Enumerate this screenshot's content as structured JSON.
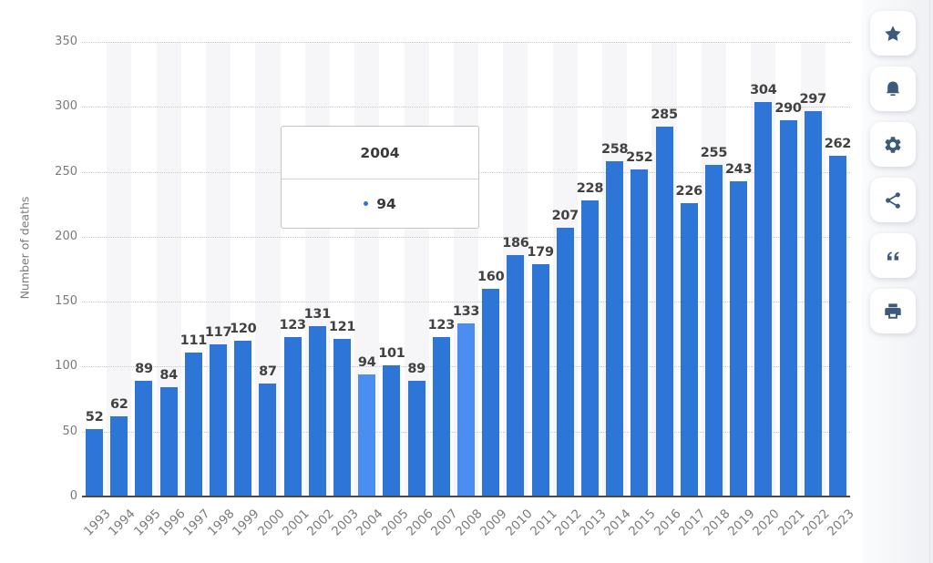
{
  "chart_data": {
    "type": "bar",
    "ylabel": "Number of deaths",
    "ylim": [
      0,
      350
    ],
    "yticks": [
      0,
      50,
      100,
      150,
      200,
      250,
      300,
      350
    ],
    "grid": "horizontal-dotted",
    "legend": "none",
    "categories": [
      "1993",
      "1994",
      "1995",
      "1996",
      "1997",
      "1998",
      "1999",
      "2000",
      "2001",
      "2002",
      "2003",
      "2004",
      "2005",
      "2006",
      "2007",
      "2008",
      "2009",
      "2010",
      "2011",
      "2012",
      "2013",
      "2014",
      "2015",
      "2016",
      "2017",
      "2018",
      "2019",
      "2020",
      "2021",
      "2022",
      "2023"
    ],
    "values": [
      52,
      62,
      89,
      84,
      111,
      117,
      120,
      87,
      123,
      131,
      121,
      94,
      101,
      89,
      123,
      133,
      160,
      186,
      179,
      207,
      228,
      258,
      252,
      285,
      226,
      255,
      243,
      304,
      290,
      297,
      262
    ],
    "highlighted_categories": [
      "2004",
      "2008"
    ],
    "colors": {
      "bar": "#2e75d8",
      "bar_highlight": "#4b8df0",
      "value_label": "#414141",
      "axis_label": "#7a7a7a",
      "gridline": "#c9c9c9",
      "baseline": "#4a4a4a",
      "band": "#f6f6f8"
    }
  },
  "tooltip": {
    "title": "2004",
    "value": "94",
    "dot_color": "#2e75d8"
  },
  "toolbar": {
    "icon_color": "#3c5a7e",
    "buttons": [
      {
        "name": "favorite",
        "icon": "star-icon"
      },
      {
        "name": "notifications",
        "icon": "bell-icon"
      },
      {
        "name": "settings",
        "icon": "gear-icon"
      },
      {
        "name": "share",
        "icon": "share-icon"
      },
      {
        "name": "cite",
        "icon": "quote-icon"
      },
      {
        "name": "print",
        "icon": "printer-icon"
      }
    ]
  }
}
